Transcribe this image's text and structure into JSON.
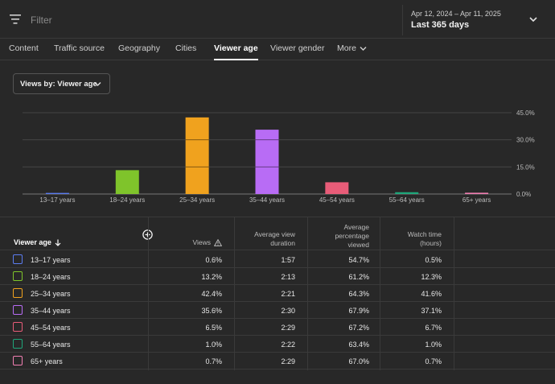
{
  "filter": {
    "placeholder": "Filter"
  },
  "date": {
    "range": "Apr 12, 2024 – Apr 11, 2025",
    "period": "Last 365 days"
  },
  "tabs": [
    "Content",
    "Traffic source",
    "Geography",
    "Cities",
    "Viewer age",
    "Viewer gender",
    "More"
  ],
  "active_tab": "Viewer age",
  "views_by": "Views by: Viewer age",
  "colors": {
    "13–17 years": "#5b7cf0",
    "18–24 years": "#7fc42b",
    "25–34 years": "#f0a21e",
    "35–44 years": "#b86cf5",
    "45–54 years": "#e85c78",
    "55–64 years": "#1fa67a",
    "65+ years": "#f27fb3"
  },
  "chart_data": {
    "type": "bar",
    "categories": [
      "13–17 years",
      "18–24 years",
      "25–34 years",
      "35–44 years",
      "45–54 years",
      "55–64 years",
      "65+ years"
    ],
    "values": [
      0.6,
      13.2,
      42.4,
      35.6,
      6.5,
      1.0,
      0.7
    ],
    "yticks": [
      "45.0%",
      "30.0%",
      "15.0%",
      "0.0%"
    ],
    "ylim": [
      0,
      45
    ],
    "grid": true
  },
  "table": {
    "headers": {
      "age": "Viewer age",
      "views": "Views",
      "avd": [
        "Average view",
        "duration"
      ],
      "apv": [
        "Average",
        "percentage",
        "viewed"
      ],
      "watch": [
        "Watch time",
        "(hours)"
      ]
    },
    "rows": [
      {
        "age": "13–17 years",
        "views": "0.6%",
        "avd": "1:57",
        "apv": "54.7%",
        "watch": "0.5%"
      },
      {
        "age": "18–24 years",
        "views": "13.2%",
        "avd": "2:13",
        "apv": "61.2%",
        "watch": "12.3%"
      },
      {
        "age": "25–34 years",
        "views": "42.4%",
        "avd": "2:21",
        "apv": "64.3%",
        "watch": "41.6%"
      },
      {
        "age": "35–44 years",
        "views": "35.6%",
        "avd": "2:30",
        "apv": "67.9%",
        "watch": "37.1%"
      },
      {
        "age": "45–54 years",
        "views": "6.5%",
        "avd": "2:29",
        "apv": "67.2%",
        "watch": "6.7%"
      },
      {
        "age": "55–64 years",
        "views": "1.0%",
        "avd": "2:22",
        "apv": "63.4%",
        "watch": "1.0%"
      },
      {
        "age": "65+ years",
        "views": "0.7%",
        "avd": "2:29",
        "apv": "67.0%",
        "watch": "0.7%"
      }
    ]
  }
}
